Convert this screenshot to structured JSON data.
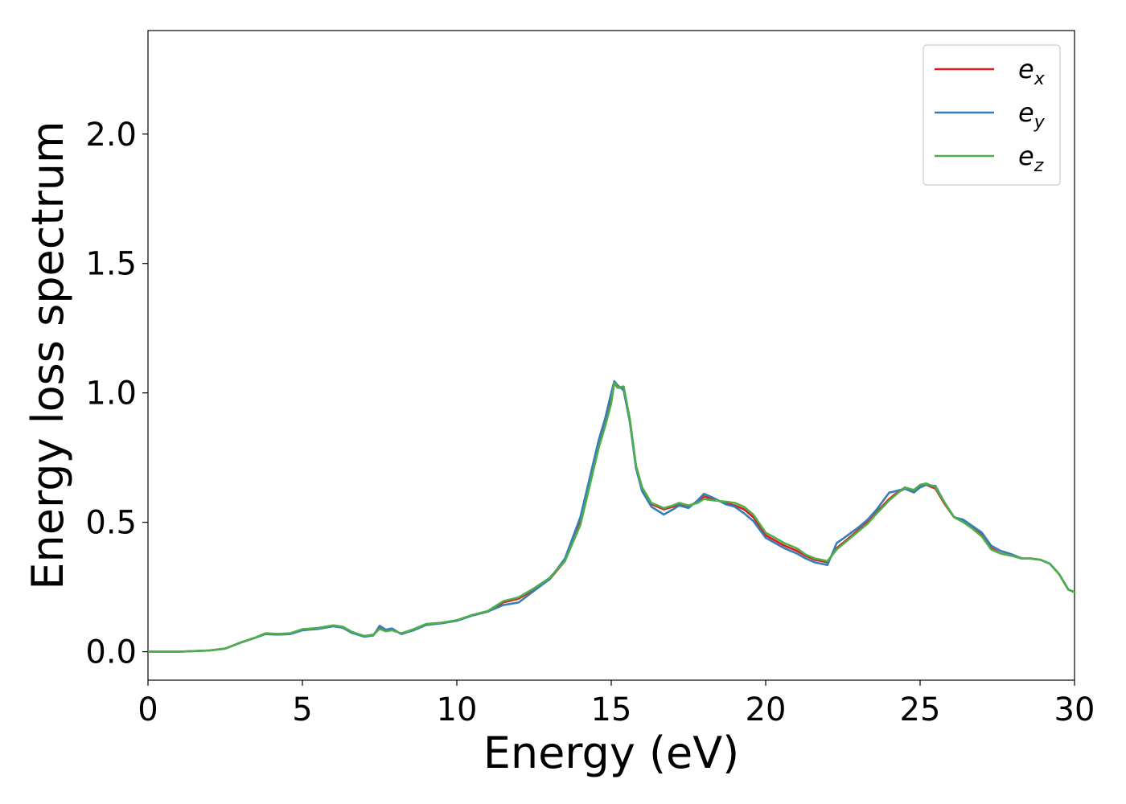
{
  "chart_data": {
    "type": "line",
    "xlabel": "Energy (eV)",
    "ylabel": "Energy loss spectrum",
    "xlim": [
      0,
      30
    ],
    "ylim": [
      -0.11,
      2.4
    ],
    "xticks": [
      0,
      5,
      10,
      15,
      20,
      25,
      30
    ],
    "xtick_labels": [
      "0",
      "5",
      "10",
      "15",
      "20",
      "25",
      "30"
    ],
    "yticks": [
      0.0,
      0.5,
      1.0,
      1.5,
      2.0
    ],
    "ytick_labels": [
      "0.0",
      "0.5",
      "1.0",
      "1.5",
      "2.0"
    ],
    "grid": false,
    "legend_position": "top-right",
    "series": [
      {
        "name": "e_x",
        "legend_base": "e",
        "legend_sub": "x",
        "color": "#e41a1c",
        "x": [
          0,
          1,
          2,
          2.5,
          3,
          3.5,
          3.8,
          4.2,
          4.6,
          5,
          5.5,
          6,
          6.3,
          6.6,
          7,
          7.3,
          7.5,
          7.7,
          7.9,
          8.2,
          8.6,
          9,
          9.5,
          10,
          10.5,
          11,
          11.5,
          12,
          12.5,
          13,
          13.5,
          14,
          14.3,
          14.6,
          14.8,
          15,
          15.1,
          15.2,
          15.4,
          15.6,
          15.8,
          16,
          16.3,
          16.7,
          17,
          17.2,
          17.5,
          17.8,
          18,
          18.3,
          18.7,
          19,
          19.3,
          19.6,
          20,
          20.3,
          20.6,
          21,
          21.3,
          21.6,
          22,
          22.3,
          22.6,
          23,
          23.3,
          23.6,
          24,
          24.2,
          24.5,
          24.8,
          25,
          25.2,
          25.5,
          25.8,
          26.1,
          26.4,
          26.7,
          27,
          27.3,
          27.6,
          28,
          28.3,
          28.6,
          28.9,
          29.2,
          29.5,
          29.8,
          30
        ],
        "y": [
          0.0,
          0.0,
          0.005,
          0.012,
          0.035,
          0.055,
          0.07,
          0.068,
          0.07,
          0.085,
          0.09,
          0.1,
          0.095,
          0.075,
          0.06,
          0.065,
          0.09,
          0.08,
          0.085,
          0.07,
          0.085,
          0.105,
          0.11,
          0.12,
          0.14,
          0.155,
          0.19,
          0.205,
          0.24,
          0.28,
          0.35,
          0.5,
          0.65,
          0.8,
          0.88,
          0.97,
          1.04,
          1.02,
          1.02,
          0.9,
          0.72,
          0.63,
          0.57,
          0.55,
          0.56,
          0.57,
          0.56,
          0.58,
          0.6,
          0.59,
          0.575,
          0.565,
          0.55,
          0.52,
          0.45,
          0.43,
          0.41,
          0.39,
          0.37,
          0.355,
          0.345,
          0.4,
          0.43,
          0.47,
          0.5,
          0.54,
          0.59,
          0.61,
          0.63,
          0.62,
          0.64,
          0.645,
          0.63,
          0.57,
          0.52,
          0.505,
          0.48,
          0.45,
          0.4,
          0.38,
          0.37,
          0.36,
          0.36,
          0.355,
          0.34,
          0.3,
          0.24,
          0.23
        ]
      },
      {
        "name": "e_y",
        "legend_base": "e",
        "legend_sub": "y",
        "color": "#377eb8",
        "x": [
          0,
          1,
          2,
          2.5,
          3,
          3.5,
          3.8,
          4.2,
          4.6,
          5,
          5.5,
          6,
          6.3,
          6.6,
          7,
          7.3,
          7.5,
          7.7,
          7.9,
          8.2,
          8.6,
          9,
          9.5,
          10,
          10.5,
          11,
          11.5,
          12,
          12.5,
          13,
          13.5,
          14,
          14.3,
          14.6,
          14.8,
          15,
          15.1,
          15.2,
          15.4,
          15.6,
          15.8,
          16,
          16.3,
          16.7,
          17,
          17.2,
          17.5,
          17.8,
          18,
          18.3,
          18.7,
          19,
          19.3,
          19.6,
          20,
          20.3,
          20.6,
          21,
          21.3,
          21.6,
          22,
          22.3,
          22.6,
          23,
          23.3,
          23.6,
          24,
          24.2,
          24.5,
          24.8,
          25,
          25.2,
          25.5,
          25.8,
          26.1,
          26.4,
          26.7,
          27,
          27.3,
          27.6,
          28,
          28.3,
          28.6,
          28.9,
          29.2,
          29.5,
          29.8,
          30
        ],
        "y": [
          0.0,
          0.0,
          0.005,
          0.012,
          0.035,
          0.055,
          0.068,
          0.066,
          0.068,
          0.083,
          0.088,
          0.098,
          0.093,
          0.073,
          0.058,
          0.063,
          0.1,
          0.085,
          0.09,
          0.068,
          0.083,
          0.103,
          0.11,
          0.12,
          0.14,
          0.155,
          0.18,
          0.19,
          0.235,
          0.28,
          0.36,
          0.52,
          0.67,
          0.82,
          0.9,
          1.0,
          1.045,
          1.03,
          1.01,
          0.89,
          0.71,
          0.62,
          0.56,
          0.53,
          0.55,
          0.565,
          0.555,
          0.585,
          0.61,
          0.595,
          0.57,
          0.56,
          0.535,
          0.505,
          0.44,
          0.42,
          0.4,
          0.38,
          0.36,
          0.345,
          0.335,
          0.42,
          0.445,
          0.48,
          0.51,
          0.55,
          0.615,
          0.62,
          0.63,
          0.615,
          0.635,
          0.645,
          0.64,
          0.575,
          0.52,
          0.51,
          0.485,
          0.46,
          0.41,
          0.39,
          0.375,
          0.36,
          0.36,
          0.355,
          0.34,
          0.3,
          0.24,
          0.23
        ]
      },
      {
        "name": "e_z",
        "legend_base": "e",
        "legend_sub": "z",
        "color": "#4daf4a",
        "x": [
          0,
          1,
          2,
          2.5,
          3,
          3.5,
          3.8,
          4.2,
          4.6,
          5,
          5.5,
          6,
          6.3,
          6.6,
          7,
          7.3,
          7.5,
          7.7,
          7.9,
          8.2,
          8.6,
          9,
          9.5,
          10,
          10.5,
          11,
          11.5,
          12,
          12.5,
          13,
          13.5,
          14,
          14.3,
          14.6,
          14.8,
          15,
          15.1,
          15.2,
          15.4,
          15.6,
          15.8,
          16,
          16.3,
          16.7,
          17,
          17.2,
          17.5,
          17.8,
          18,
          18.3,
          18.7,
          19,
          19.3,
          19.6,
          20,
          20.3,
          20.6,
          21,
          21.3,
          21.6,
          22,
          22.3,
          22.6,
          23,
          23.3,
          23.6,
          24,
          24.2,
          24.5,
          24.8,
          25,
          25.2,
          25.5,
          25.8,
          26.1,
          26.4,
          26.7,
          27,
          27.3,
          27.6,
          28,
          28.3,
          28.6,
          28.9,
          29.2,
          29.5,
          29.8,
          30
        ],
        "y": [
          0.0,
          0.0,
          0.005,
          0.012,
          0.036,
          0.056,
          0.071,
          0.069,
          0.071,
          0.087,
          0.092,
          0.102,
          0.097,
          0.077,
          0.061,
          0.066,
          0.088,
          0.079,
          0.083,
          0.071,
          0.087,
          0.107,
          0.112,
          0.122,
          0.142,
          0.157,
          0.195,
          0.21,
          0.245,
          0.285,
          0.35,
          0.49,
          0.64,
          0.79,
          0.87,
          0.96,
          1.04,
          1.02,
          1.025,
          0.9,
          0.72,
          0.635,
          0.575,
          0.555,
          0.565,
          0.575,
          0.565,
          0.575,
          0.59,
          0.585,
          0.58,
          0.575,
          0.56,
          0.53,
          0.46,
          0.44,
          0.42,
          0.4,
          0.375,
          0.36,
          0.35,
          0.395,
          0.425,
          0.465,
          0.495,
          0.535,
          0.585,
          0.605,
          0.635,
          0.625,
          0.645,
          0.65,
          0.635,
          0.575,
          0.52,
          0.5,
          0.475,
          0.445,
          0.395,
          0.38,
          0.37,
          0.36,
          0.36,
          0.355,
          0.34,
          0.3,
          0.24,
          0.23
        ]
      }
    ]
  }
}
